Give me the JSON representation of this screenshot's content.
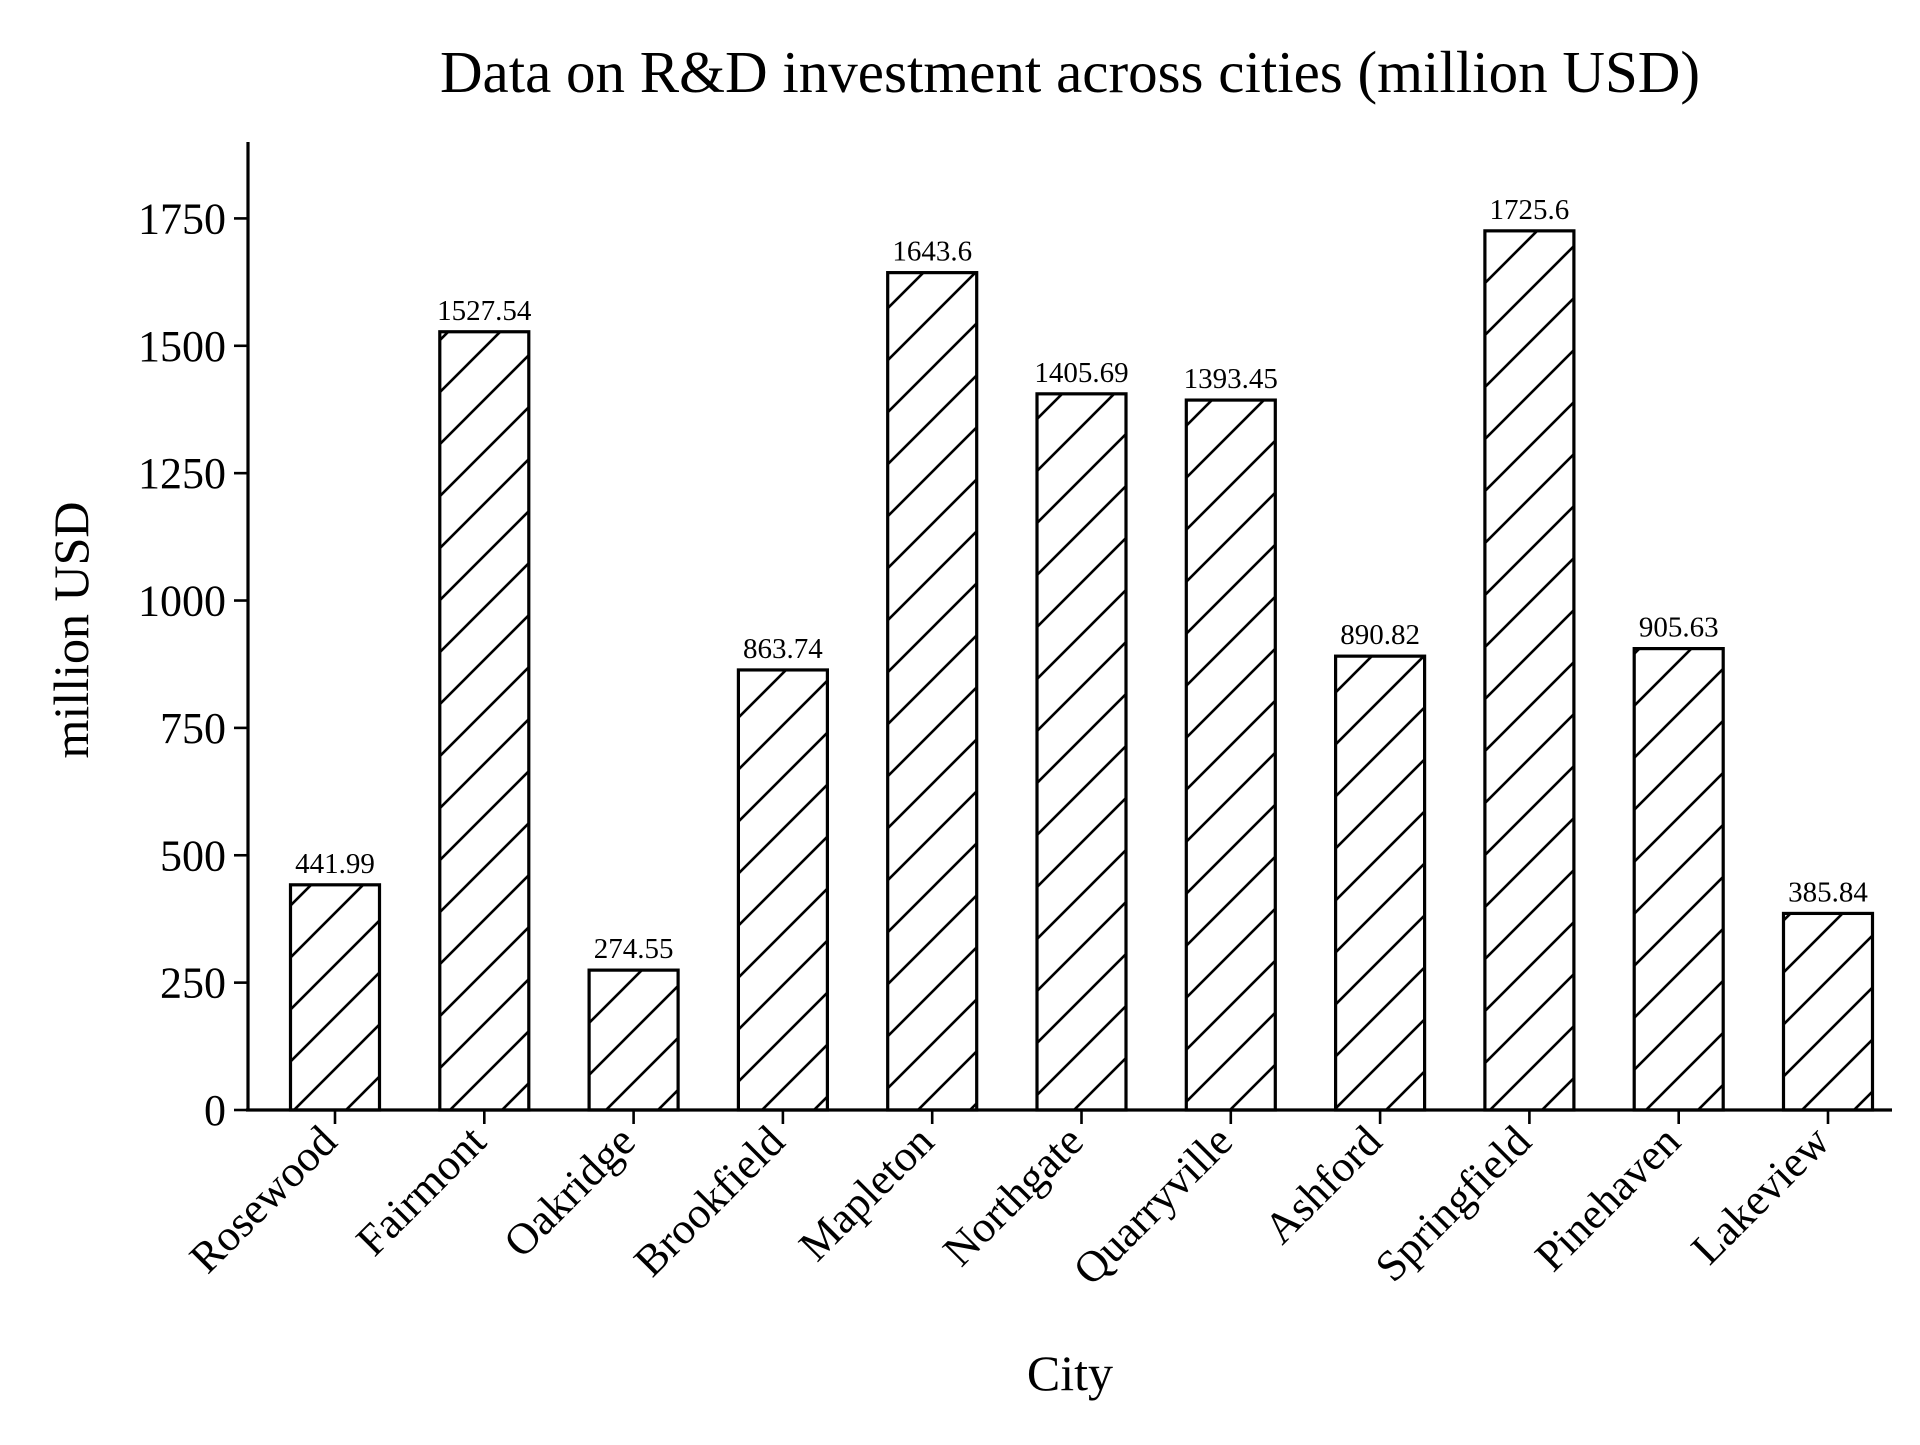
{
  "chart_data": {
    "type": "bar",
    "title": "Data on R&D investment across cities (million USD)",
    "xlabel": "City",
    "ylabel": "million USD",
    "categories": [
      "Rosewood",
      "Fairmont",
      "Oakridge",
      "Brookfield",
      "Mapleton",
      "Northgate",
      "Quarryville",
      "Ashford",
      "Springfield",
      "Pinehaven",
      "Lakeview"
    ],
    "values": [
      441.99,
      1527.54,
      274.55,
      863.74,
      1643.6,
      1405.69,
      1393.45,
      890.82,
      1725.6,
      905.63,
      385.84
    ],
    "value_labels": [
      "441.99",
      "1527.54",
      "274.55",
      "863.74",
      "1643.6",
      "1405.69",
      "1393.45",
      "890.82",
      "1725.6",
      "905.63",
      "385.84"
    ],
    "ylim": [
      0,
      1900
    ],
    "yticks": [
      0,
      250,
      500,
      750,
      1000,
      1250,
      1500,
      1750
    ],
    "bar_fill": "#ffffff",
    "bar_edge": "#000000",
    "hatch": "diagonal",
    "grid": false,
    "legend": "none"
  }
}
